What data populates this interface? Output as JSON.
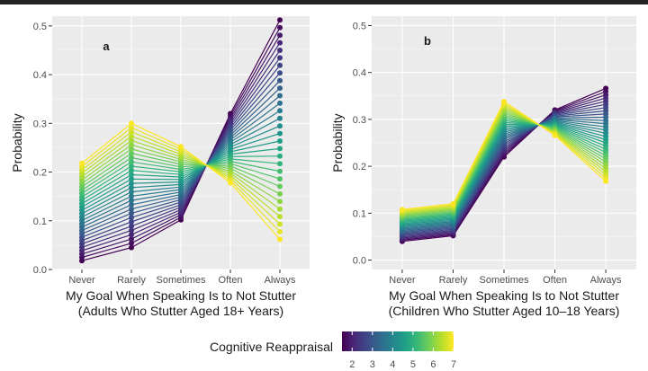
{
  "colors": {
    "panel_bg": "#ebebeb",
    "grid_major": "#ffffff",
    "axis_text": "#4d4d4d",
    "title_text": "#1a1a1a",
    "viridis": [
      "#440154",
      "#482878",
      "#3e4989",
      "#31688e",
      "#26828e",
      "#1f9e89",
      "#35b779",
      "#6ece58",
      "#b5de2b",
      "#fde725"
    ]
  },
  "legend": {
    "title": "Cognitive Reappraisal",
    "min": 1.5,
    "max": 7,
    "ticks": [
      2,
      3,
      4,
      5,
      6,
      7
    ],
    "tick_labels": [
      "2",
      "3",
      "4",
      "5",
      "6",
      "7"
    ]
  },
  "chart_data": [
    {
      "type": "line",
      "panel_label": "a",
      "categories": [
        "Never",
        "Rarely",
        "Sometimes",
        "Often",
        "Always"
      ],
      "xlabel_line1": "My Goal When Speaking Is to Not Stutter",
      "xlabel_line2": "(Adults Who Stutter Aged 18+ Years)",
      "ylabel": "Probability",
      "ylim": [
        0,
        0.52
      ],
      "yticks": [
        0.0,
        0.1,
        0.2,
        0.3,
        0.4,
        0.5
      ],
      "ytick_labels": [
        "0.0",
        "0.1",
        "0.2",
        "0.3",
        "0.4",
        "0.5"
      ],
      "color_var": "Cognitive Reappraisal",
      "series_count": 30,
      "series_low": {
        "name": "Cognitive Reappraisal = 1.5",
        "values": [
          0.018,
          0.045,
          0.102,
          0.32,
          0.512
        ]
      },
      "series_high": {
        "name": "Cognitive Reappraisal = 7",
        "values": [
          0.218,
          0.3,
          0.252,
          0.178,
          0.062
        ]
      }
    },
    {
      "type": "line",
      "panel_label": "b",
      "categories": [
        "Never",
        "Rarely",
        "Sometimes",
        "Often",
        "Always"
      ],
      "xlabel_line1": "My Goal When Speaking Is to Not Stutter",
      "xlabel_line2": "(Children Who Stutter Aged 10–18 Years)",
      "ylabel": "Probability",
      "ylim": [
        -0.02,
        0.52
      ],
      "yticks": [
        0.0,
        0.1,
        0.2,
        0.3,
        0.4,
        0.5
      ],
      "ytick_labels": [
        "0.0",
        "0.1",
        "0.2",
        "0.3",
        "0.4",
        "0.5"
      ],
      "color_var": "Cognitive Reappraisal",
      "series_count": 30,
      "series_low": {
        "name": "Cognitive Reappraisal = 1.5",
        "values": [
          0.04,
          0.052,
          0.22,
          0.32,
          0.366
        ]
      },
      "series_high": {
        "name": "Cognitive Reappraisal = 7",
        "values": [
          0.108,
          0.12,
          0.338,
          0.266,
          0.168
        ]
      }
    }
  ]
}
